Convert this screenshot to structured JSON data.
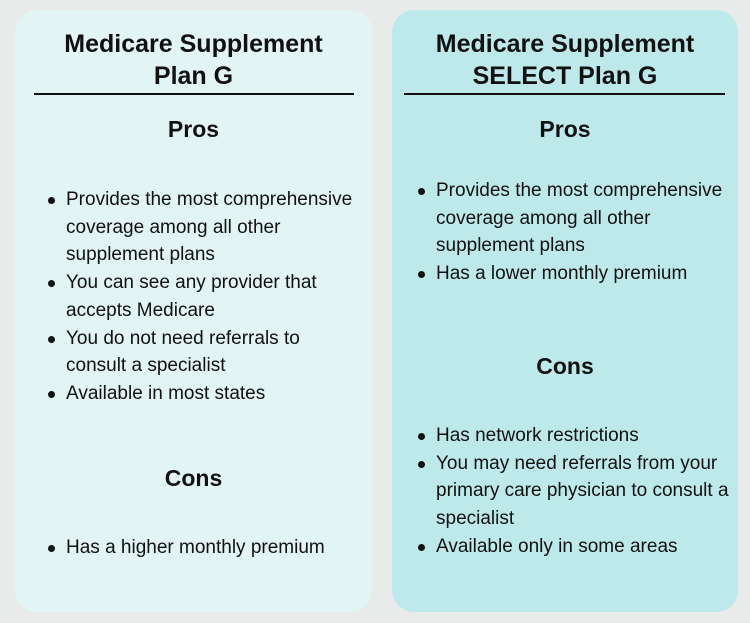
{
  "columns": [
    {
      "title_lines": [
        "Medicare Supplement",
        "Plan G"
      ],
      "pros_heading": "Pros",
      "pros": [
        "Provides the most comprehensive coverage among all other supplement plans",
        "You can see any provider that accepts Medicare",
        "You do not need referrals to consult a specialist",
        "Available in most states"
      ],
      "cons_heading": "Cons",
      "cons": [
        "Has a higher monthly premium"
      ]
    },
    {
      "title_lines": [
        "Medicare Supplement",
        "SELECT Plan G"
      ],
      "pros_heading": "Pros",
      "pros": [
        "Provides the most comprehensive coverage among all other supplement plans",
        "Has a lower monthly premium"
      ],
      "cons_heading": "Cons",
      "cons": [
        "Has network restrictions",
        "You may need referrals from your primary care physician to consult a specialist",
        "Available only in some areas"
      ]
    }
  ]
}
